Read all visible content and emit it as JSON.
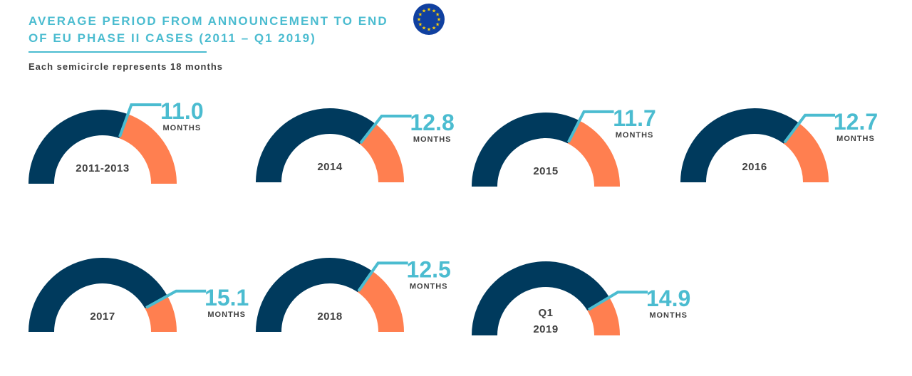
{
  "header": {
    "title_line1": "AVERAGE PERIOD FROM ANNOUNCEMENT TO END",
    "title_line2": "OF EU PHASE II CASES (2011 – Q1 2019)",
    "subtitle": "Each semicircle represents 18 months"
  },
  "colors": {
    "filled": "#003a5d",
    "remaining": "#ff7f50",
    "accent": "#4bbcd0",
    "flag_blue": "#1040a0",
    "flag_star": "#ffd200"
  },
  "icons": {
    "flag": "eu-flag-icon"
  },
  "chart_data": {
    "type": "gauge",
    "max": 18,
    "unit": "MONTHS",
    "series": [
      {
        "label": [
          "2011-2013"
        ],
        "value": 11.0,
        "value_text": "11.0"
      },
      {
        "label": [
          "2014"
        ],
        "value": 12.8,
        "value_text": "12.8"
      },
      {
        "label": [
          "2015"
        ],
        "value": 11.7,
        "value_text": "11.7"
      },
      {
        "label": [
          "2016"
        ],
        "value": 12.7,
        "value_text": "12.7"
      },
      {
        "label": [
          "2017"
        ],
        "value": 15.1,
        "value_text": "15.1"
      },
      {
        "label": [
          "2018"
        ],
        "value": 12.5,
        "value_text": "12.5"
      },
      {
        "label": [
          "Q1",
          "2019"
        ],
        "value": 14.9,
        "value_text": "14.9"
      }
    ]
  }
}
